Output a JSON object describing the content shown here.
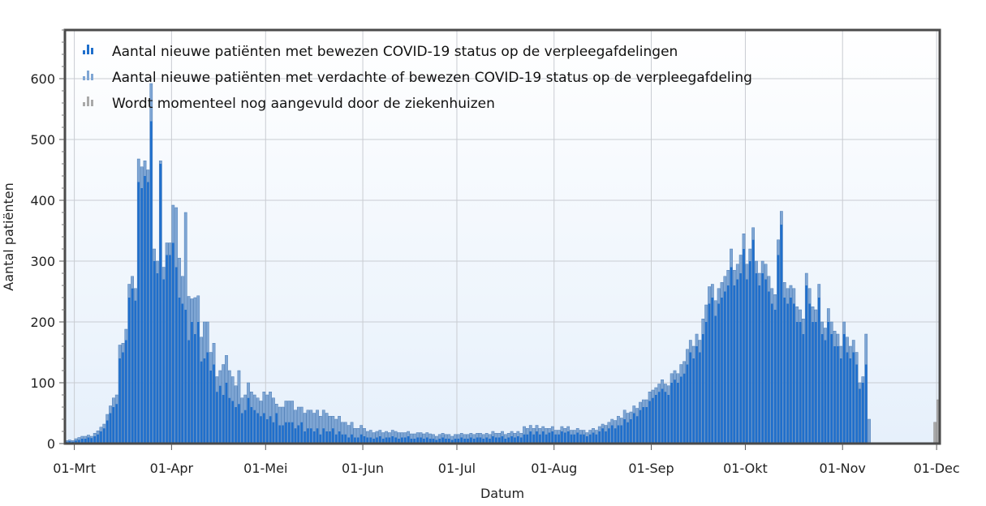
{
  "chart_data": {
    "type": "bar",
    "xlabel": "Datum",
    "ylabel": "Aantal patiënten",
    "ylim": [
      0,
      680
    ],
    "y_ticks": [
      0,
      100,
      200,
      300,
      400,
      500,
      600
    ],
    "x_ticks": [
      {
        "label": "01-Mrt",
        "date": "2020-03-01"
      },
      {
        "label": "01-Apr",
        "date": "2020-04-01"
      },
      {
        "label": "01-Mei",
        "date": "2020-05-01"
      },
      {
        "label": "01-Jun",
        "date": "2020-06-01"
      },
      {
        "label": "01-Jul",
        "date": "2020-07-01"
      },
      {
        "label": "01-Aug",
        "date": "2020-08-01"
      },
      {
        "label": "01-Sep",
        "date": "2020-09-01"
      },
      {
        "label": "01-Okt",
        "date": "2020-10-01"
      },
      {
        "label": "01-Nov",
        "date": "2020-11-01"
      },
      {
        "label": "01-Dec",
        "date": "2020-12-01"
      }
    ],
    "x_start": "2020-02-27",
    "x_end": "2020-12-02",
    "grid": true,
    "legend_position": "top-left",
    "series_colors": {
      "bewezen": "#1f6fcc",
      "verdacht": "#7fa6d4",
      "aangevuld": "#a9a9a9"
    },
    "series": [
      {
        "name": "Aantal nieuwe patiënten met bewezen COVID-19 status op de verpleegafdelingen",
        "start_date": "2020-02-27",
        "values": [
          3,
          4,
          3,
          5,
          6,
          8,
          8,
          10,
          9,
          12,
          15,
          20,
          25,
          38,
          50,
          60,
          65,
          140,
          150,
          170,
          240,
          255,
          235,
          430,
          420,
          440,
          430,
          530,
          300,
          280,
          460,
          270,
          310,
          310,
          330,
          290,
          240,
          230,
          220,
          170,
          200,
          180,
          200,
          135,
          140,
          150,
          120,
          130,
          85,
          95,
          80,
          100,
          75,
          70,
          60,
          65,
          50,
          55,
          75,
          60,
          55,
          50,
          45,
          50,
          40,
          45,
          35,
          50,
          30,
          30,
          35,
          35,
          35,
          25,
          30,
          35,
          20,
          25,
          25,
          20,
          25,
          15,
          25,
          20,
          20,
          25,
          15,
          20,
          15,
          15,
          10,
          15,
          10,
          10,
          15,
          12,
          10,
          10,
          8,
          10,
          12,
          8,
          10,
          10,
          12,
          10,
          8,
          10,
          10,
          12,
          8,
          8,
          10,
          10,
          8,
          10,
          8,
          8,
          6,
          8,
          10,
          8,
          8,
          6,
          8,
          8,
          10,
          8,
          8,
          10,
          8,
          10,
          10,
          8,
          10,
          8,
          12,
          10,
          10,
          12,
          8,
          10,
          12,
          10,
          12,
          10,
          15,
          15,
          20,
          15,
          20,
          15,
          20,
          15,
          18,
          20,
          15,
          15,
          20,
          18,
          20,
          15,
          15,
          18,
          15,
          15,
          12,
          15,
          18,
          15,
          20,
          25,
          20,
          25,
          30,
          25,
          30,
          30,
          40,
          35,
          40,
          50,
          45,
          55,
          60,
          60,
          70,
          75,
          80,
          85,
          90,
          85,
          80,
          100,
          105,
          100,
          110,
          115,
          130,
          150,
          140,
          160,
          150,
          180,
          200,
          230,
          240,
          210,
          230,
          240,
          250,
          260,
          290,
          260,
          270,
          280,
          320,
          270,
          300,
          335,
          280,
          260,
          280,
          270,
          250,
          230,
          220,
          310,
          360,
          240,
          230,
          240,
          230,
          200,
          200,
          180,
          260,
          230,
          200,
          200,
          240,
          180,
          170,
          200,
          180,
          160,
          160,
          140,
          180,
          150,
          140,
          150,
          130,
          90,
          100,
          130,
          0
        ],
        "color": "#1f6fcc"
      },
      {
        "name": "Aantal nieuwe patiënten met verdachte of bewezen COVID-19 status op de verpleegafdeling",
        "start_date": "2020-02-27",
        "values": [
          5,
          6,
          5,
          8,
          10,
          12,
          12,
          14,
          12,
          17,
          21,
          27,
          32,
          48,
          62,
          75,
          80,
          162,
          165,
          188,
          262,
          275,
          255,
          468,
          455,
          465,
          450,
          592,
          320,
          300,
          465,
          290,
          330,
          330,
          392,
          388,
          305,
          275,
          380,
          242,
          238,
          240,
          243,
          175,
          200,
          200,
          150,
          165,
          110,
          120,
          130,
          145,
          120,
          110,
          95,
          120,
          75,
          80,
          100,
          85,
          80,
          75,
          70,
          85,
          80,
          85,
          75,
          65,
          60,
          60,
          70,
          70,
          70,
          55,
          60,
          60,
          50,
          55,
          55,
          50,
          55,
          45,
          55,
          50,
          45,
          45,
          40,
          45,
          35,
          35,
          30,
          35,
          25,
          25,
          30,
          25,
          20,
          22,
          18,
          20,
          22,
          18,
          20,
          18,
          22,
          20,
          18,
          18,
          18,
          20,
          16,
          16,
          18,
          18,
          16,
          18,
          16,
          15,
          12,
          15,
          17,
          15,
          15,
          12,
          15,
          15,
          17,
          15,
          15,
          17,
          15,
          17,
          17,
          15,
          17,
          15,
          20,
          17,
          17,
          20,
          15,
          17,
          20,
          17,
          20,
          17,
          28,
          25,
          30,
          25,
          30,
          25,
          28,
          25,
          25,
          28,
          22,
          22,
          28,
          25,
          28,
          22,
          22,
          25,
          22,
          22,
          18,
          22,
          25,
          22,
          28,
          32,
          30,
          35,
          40,
          38,
          45,
          42,
          55,
          50,
          52,
          62,
          58,
          68,
          72,
          72,
          85,
          88,
          92,
          98,
          105,
          98,
          95,
          115,
          120,
          115,
          130,
          135,
          155,
          170,
          160,
          180,
          170,
          205,
          228,
          258,
          262,
          235,
          255,
          265,
          275,
          285,
          320,
          285,
          295,
          310,
          345,
          295,
          320,
          355,
          300,
          280,
          300,
          295,
          275,
          255,
          245,
          335,
          382,
          265,
          255,
          260,
          255,
          225,
          220,
          205,
          280,
          255,
          225,
          220,
          262,
          200,
          190,
          222,
          200,
          185,
          180,
          160,
          200,
          175,
          160,
          170,
          150,
          100,
          110,
          180,
          40
        ],
        "color": "#7fa6d4"
      },
      {
        "name": "Wordt momenteel nog aangevuld door de ziekenhuizen",
        "start_date": "2020-11-30",
        "values": [
          35,
          72
        ],
        "color": "#a9a9a9"
      }
    ]
  }
}
